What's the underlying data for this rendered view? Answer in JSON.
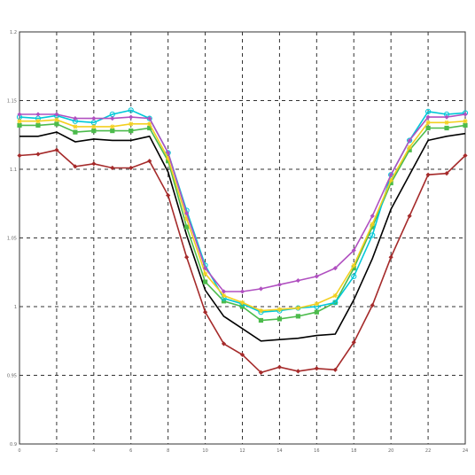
{
  "chart_data": {
    "type": "line",
    "title": "",
    "xlabel": "",
    "ylabel": "",
    "grid": true,
    "legend_position": "top-right",
    "x": [
      0,
      1,
      2,
      3,
      4,
      5,
      6,
      7,
      8,
      9,
      10,
      11,
      12,
      13,
      14,
      15,
      16,
      17,
      18,
      19,
      20,
      21,
      22,
      23,
      24
    ],
    "xticks": [
      0,
      2,
      4,
      6,
      8,
      10,
      12,
      14,
      16,
      18,
      20,
      22,
      24
    ],
    "xlim": [
      0,
      24
    ],
    "ylim": [
      0.9,
      1.2
    ],
    "yticks": [
      0.9,
      0.95,
      1.0,
      1.05,
      1.1,
      1.15,
      1.2
    ],
    "series": [
      {
        "name": "",
        "color": "#a52a2a",
        "marker": "diamond",
        "values": [
          1.11,
          1.111,
          1.114,
          1.102,
          1.104,
          1.101,
          1.101,
          1.106,
          1.081,
          1.036,
          0.996,
          0.973,
          0.965,
          0.952,
          0.956,
          0.953,
          0.955,
          0.954,
          0.974,
          1.001,
          1.036,
          1.066,
          1.096,
          1.097,
          1.11
        ]
      },
      {
        "name": "",
        "color": "#000000",
        "marker": "none",
        "values": [
          1.124,
          1.124,
          1.127,
          1.12,
          1.122,
          1.121,
          1.121,
          1.124,
          1.098,
          1.052,
          1.012,
          0.993,
          0.984,
          0.975,
          0.976,
          0.977,
          0.979,
          0.98,
          1.005,
          1.035,
          1.071,
          1.096,
          1.121,
          1.124,
          1.126
        ]
      },
      {
        "name": "",
        "color": "#4cbb4c",
        "marker": "square",
        "values": [
          1.132,
          1.132,
          1.133,
          1.127,
          1.128,
          1.128,
          1.128,
          1.13,
          1.106,
          1.058,
          1.018,
          1.004,
          1.0,
          0.99,
          0.991,
          0.993,
          0.996,
          1.003,
          1.028,
          1.058,
          1.09,
          1.114,
          1.13,
          1.13,
          1.132
        ]
      },
      {
        "name": "",
        "color": "#00c8d8",
        "marker": "circle",
        "values": [
          1.138,
          1.137,
          1.139,
          1.135,
          1.134,
          1.14,
          1.143,
          1.137,
          1.112,
          1.07,
          1.03,
          1.006,
          1.002,
          0.996,
          0.997,
          0.999,
          1.0,
          1.003,
          1.022,
          1.052,
          1.096,
          1.121,
          1.142,
          1.14,
          1.141
        ]
      },
      {
        "name": "",
        "color": "#f3d020",
        "marker": "star",
        "values": [
          1.135,
          1.135,
          1.136,
          1.131,
          1.131,
          1.131,
          1.133,
          1.133,
          1.108,
          1.064,
          1.024,
          1.008,
          1.003,
          0.997,
          0.998,
          0.999,
          1.002,
          1.008,
          1.03,
          1.06,
          1.092,
          1.116,
          1.134,
          1.134,
          1.135
        ]
      },
      {
        "name": "",
        "color": "#b050c0",
        "marker": "diamond",
        "values": [
          1.14,
          1.14,
          1.14,
          1.137,
          1.137,
          1.137,
          1.138,
          1.137,
          1.112,
          1.068,
          1.028,
          1.011,
          1.011,
          1.013,
          1.016,
          1.019,
          1.022,
          1.028,
          1.041,
          1.066,
          1.096,
          1.121,
          1.138,
          1.138,
          1.14
        ]
      }
    ]
  }
}
